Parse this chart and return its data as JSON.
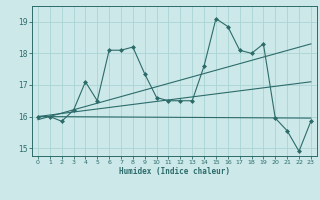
{
  "xlabel": "Humidex (Indice chaleur)",
  "bg_color": "#cce8e8",
  "line_color": "#2d6b6b",
  "grid_color": "#aad4d4",
  "xlim": [
    -0.5,
    23.5
  ],
  "ylim": [
    14.75,
    19.5
  ],
  "yticks": [
    15,
    16,
    17,
    18,
    19
  ],
  "xticks": [
    0,
    1,
    2,
    3,
    4,
    5,
    6,
    7,
    8,
    9,
    10,
    11,
    12,
    13,
    14,
    15,
    16,
    17,
    18,
    19,
    20,
    21,
    22,
    23
  ],
  "series1_x": [
    0,
    1,
    2,
    3,
    4,
    5,
    6,
    7,
    8,
    9,
    10,
    11,
    12,
    13,
    14,
    15,
    16,
    17,
    18,
    19,
    20,
    21,
    22,
    23
  ],
  "series1_y": [
    16.0,
    16.0,
    15.85,
    16.2,
    17.1,
    16.5,
    18.1,
    18.1,
    18.2,
    17.35,
    16.6,
    16.5,
    16.5,
    16.5,
    17.6,
    19.1,
    18.85,
    18.1,
    18.0,
    18.3,
    15.95,
    15.55,
    14.9,
    15.85
  ],
  "trend1_x": [
    0,
    23
  ],
  "trend1_y": [
    15.9,
    18.3
  ],
  "trend2_x": [
    0,
    23
  ],
  "trend2_y": [
    16.0,
    17.1
  ],
  "trend3_x": [
    0,
    23
  ],
  "trend3_y": [
    16.0,
    15.95
  ]
}
